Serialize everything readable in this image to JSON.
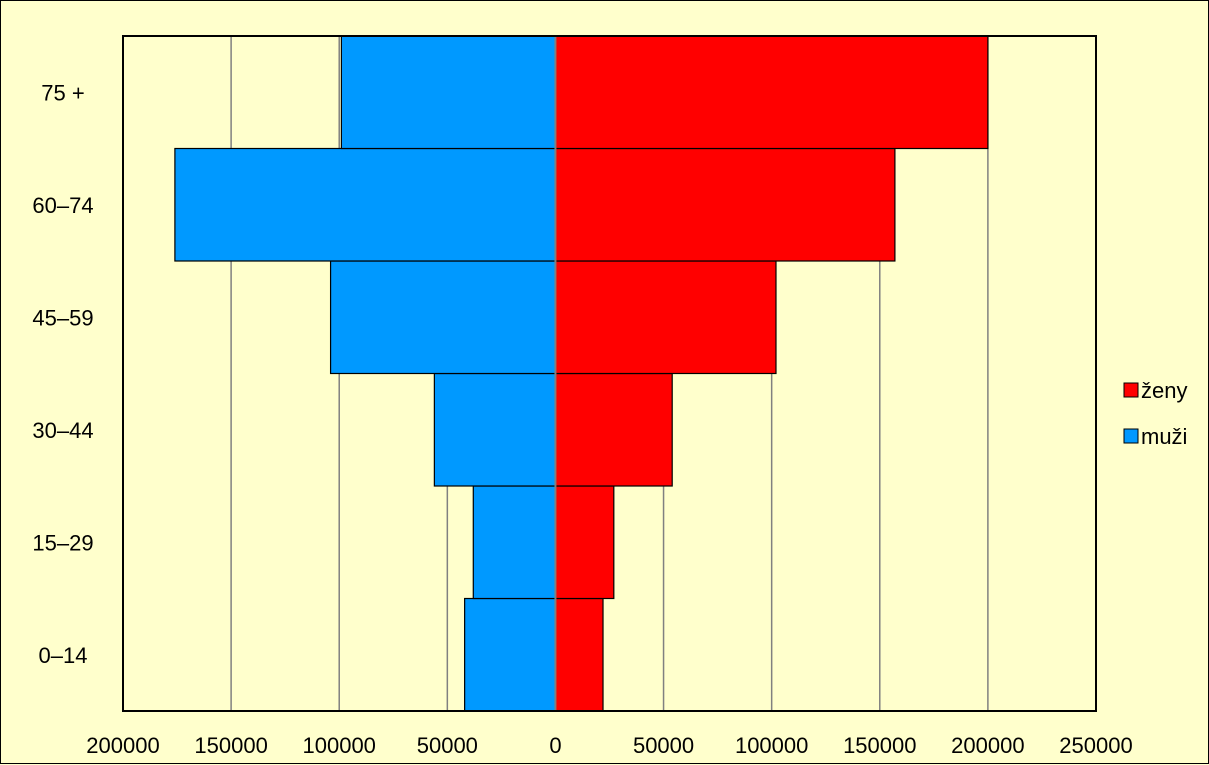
{
  "chart_data": {
    "type": "bar",
    "orientation": "horizontal",
    "layout": "population-pyramid",
    "categories": [
      "0–14",
      "15–29",
      "30–44",
      "45–59",
      "60–74",
      "75 +"
    ],
    "series": [
      {
        "name": "ženy",
        "color": "#FF0000",
        "side": "right",
        "values": [
          22000,
          27000,
          54000,
          102000,
          157000,
          200000
        ]
      },
      {
        "name": "muži",
        "color": "#0099FF",
        "side": "left",
        "values": [
          42000,
          38000,
          56000,
          104000,
          176000,
          99000
        ]
      }
    ],
    "x_tick_labels": [
      "200000",
      "150000",
      "100000",
      "50000",
      "0",
      "50000",
      "100000",
      "150000",
      "200000",
      "250000"
    ],
    "xlim": [
      -200000,
      250000
    ],
    "title": "",
    "xlabel": "",
    "ylabel": "",
    "grid": true,
    "legend_position": "right",
    "background_color": "#FFFFCC",
    "gridline_color": "#808080"
  }
}
